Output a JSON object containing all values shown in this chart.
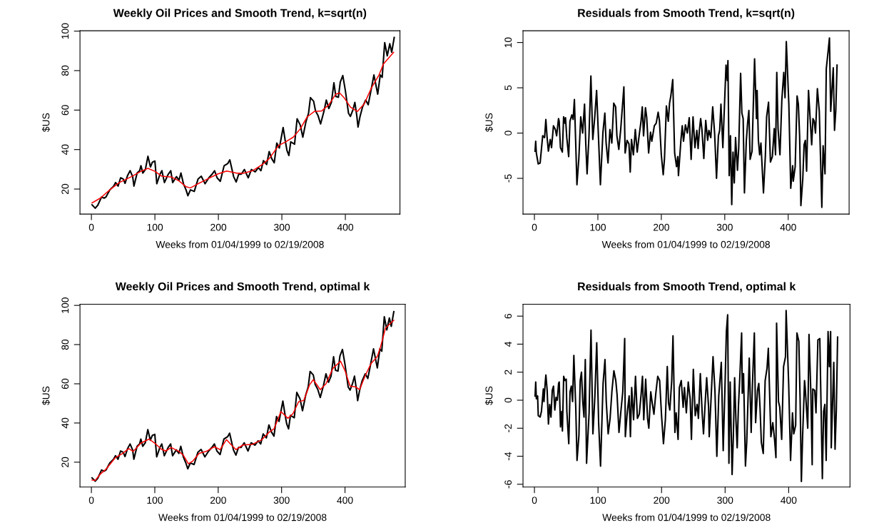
{
  "chart_data": [
    {
      "type": "line",
      "title": "Weekly Oil Prices and Smooth Trend, k=sqrt(n)",
      "xlabel": "Weeks from 01/04/1999 to 02/19/2008",
      "ylabel": "$US",
      "xlim": [
        -18,
        486
      ],
      "ylim": [
        7.3,
        100.2
      ],
      "xticks": [
        0,
        100,
        200,
        300,
        400
      ],
      "yticks": [
        20,
        40,
        60,
        80,
        100
      ],
      "series": [
        {
          "color": "#000000",
          "x": [
            1,
            6,
            10,
            16,
            20,
            23,
            29,
            35,
            38,
            42,
            46,
            50,
            53,
            57,
            61,
            65,
            67,
            72,
            76,
            78,
            81,
            85,
            89,
            93,
            96,
            100,
            103,
            108,
            111,
            115,
            121,
            125,
            128,
            134,
            138,
            141,
            145,
            149,
            152,
            156,
            162,
            168,
            173,
            179,
            185,
            190,
            194,
            198,
            203,
            209,
            215,
            218,
            224,
            228,
            232,
            236,
            241,
            247,
            252,
            258,
            263,
            267,
            271,
            276,
            280,
            284,
            288,
            292,
            296,
            302,
            305,
            308,
            311,
            314,
            320,
            324,
            329,
            333,
            338,
            342,
            345,
            350,
            353,
            357,
            361,
            366,
            370,
            374,
            378,
            382,
            385,
            389,
            392,
            396,
            400,
            405,
            408,
            412,
            415,
            418,
            420,
            423,
            427,
            432,
            436,
            440,
            445,
            451,
            455,
            458,
            462,
            466,
            470,
            473,
            477
          ],
          "values": [
            12.0,
            10.3,
            11.8,
            16.0,
            15.4,
            16.0,
            19.6,
            21.5,
            23.3,
            21.5,
            25.7,
            25.1,
            22.9,
            26.9,
            29.3,
            26.3,
            21.5,
            28.1,
            29.3,
            31.8,
            28.1,
            29.9,
            36.6,
            31.2,
            33.6,
            34.2,
            22.7,
            27.5,
            29.3,
            23.3,
            27.5,
            29.3,
            23.3,
            26.3,
            24.5,
            28.1,
            22.7,
            19.6,
            16.6,
            19.6,
            18.8,
            25.1,
            26.5,
            22.7,
            25.7,
            27.5,
            29.3,
            25.7,
            23.9,
            31.8,
            33.0,
            34.8,
            26.3,
            23.6,
            27.5,
            27.5,
            29.9,
            25.7,
            29.9,
            28.7,
            30.9,
            29.3,
            34.4,
            32.4,
            39.0,
            35.4,
            33.3,
            43.3,
            40.8,
            51.2,
            45.1,
            39.6,
            37.0,
            43.9,
            42.7,
            55.6,
            52.4,
            46.3,
            54.2,
            58.4,
            66.3,
            64.5,
            59.6,
            57.2,
            53.0,
            59.0,
            65.1,
            60.8,
            63.9,
            73.8,
            66.9,
            66.5,
            74.2,
            77.5,
            69.9,
            58.4,
            56.8,
            60.2,
            63.9,
            57.2,
            51.4,
            56.6,
            61.5,
            65.1,
            62.7,
            69.3,
            77.8,
            68.1,
            77.8,
            76.6,
            94.2,
            87.5,
            93.6,
            89.3,
            96.8
          ]
        },
        {
          "color": "#ff0000",
          "x": [
            1,
            14,
            29,
            44,
            63,
            78,
            89,
            100,
            111,
            126,
            138,
            149,
            156,
            168,
            183,
            198,
            213,
            228,
            239,
            254,
            269,
            280,
            295,
            306,
            318,
            329,
            340,
            351,
            363,
            374,
            385,
            391,
            398,
            408,
            419,
            430,
            441,
            453,
            460,
            476
          ],
          "values": [
            13.0,
            15.4,
            19.6,
            23.3,
            26.3,
            29.0,
            30.5,
            29.0,
            26.5,
            26.1,
            24.1,
            21.2,
            20.6,
            22.7,
            25.1,
            27.5,
            29.1,
            28.1,
            28.0,
            29.3,
            32.4,
            35.4,
            42.1,
            43.9,
            46.3,
            50.5,
            56.6,
            59.3,
            59.6,
            62.7,
            68.1,
            68.7,
            66.3,
            61.5,
            59.3,
            63.3,
            71.2,
            77.8,
            83.3,
            89.3
          ]
        }
      ]
    },
    {
      "type": "line",
      "title": "Residuals from Smooth Trend, k=sqrt(n)",
      "xlabel": "Weeks from 01/04/1999 to 02/19/2008",
      "ylabel": "$US",
      "xlim": [
        -18,
        496
      ],
      "ylim": [
        -8.95,
        11.3
      ],
      "xticks": [
        0,
        100,
        200,
        300,
        400
      ],
      "yticks": [
        -5,
        0,
        5,
        10
      ],
      "series": [
        {
          "color": "#000000",
          "x": [
            1,
            2,
            3,
            6,
            9,
            13,
            16,
            18,
            20,
            22,
            25,
            27,
            30,
            33,
            35,
            38,
            39,
            41,
            44,
            46,
            48,
            49,
            51,
            54,
            56,
            59,
            61,
            63,
            65,
            67,
            70,
            73,
            76,
            79,
            81,
            83,
            86,
            89,
            92,
            95,
            98,
            101,
            104,
            108,
            111,
            113,
            116,
            119,
            122,
            125,
            128,
            130,
            133,
            136,
            139,
            141,
            143,
            146,
            149,
            151,
            153,
            156,
            159,
            162,
            165,
            168,
            170,
            172,
            175,
            177,
            180,
            183,
            185,
            189,
            192,
            195,
            197,
            200,
            203,
            205,
            208,
            211,
            213,
            215,
            218,
            221,
            224,
            226,
            227,
            231,
            233,
            235,
            238,
            241,
            244,
            247,
            250,
            253,
            256,
            258,
            260,
            262,
            264,
            267,
            270,
            273,
            275,
            278,
            281,
            284,
            287,
            290,
            292,
            294,
            297,
            300,
            302,
            304,
            305,
            307,
            309,
            311,
            313,
            315,
            317,
            320,
            322,
            325,
            327,
            329,
            331,
            334,
            336,
            338,
            340,
            343,
            347,
            350,
            351,
            353,
            355,
            357,
            361,
            364,
            366,
            369,
            372,
            375,
            378,
            380,
            382,
            384,
            387,
            390,
            393,
            395,
            397,
            401,
            404,
            407,
            408,
            411,
            414,
            416,
            418,
            420,
            423,
            425,
            427,
            429,
            432,
            435,
            437,
            439,
            441,
            443,
            446,
            449,
            453,
            455,
            458,
            460,
            463,
            465,
            467,
            471,
            473,
            475,
            477
          ],
          "values": [
            -2.0,
            -0.9,
            -2.2,
            -3.4,
            -3.3,
            -0.3,
            -0.5,
            1.5,
            -0.5,
            -2.0,
            -0.7,
            -1.6,
            0.8,
            0.4,
            -0.3,
            1.6,
            1.3,
            -1.6,
            -2.1,
            1.8,
            1.1,
            1.7,
            -0.5,
            -2.6,
            1.3,
            2.0,
            1.5,
            3.7,
            -0.9,
            -5.7,
            -2.8,
            1.8,
            0.0,
            3.2,
            -1.3,
            -4.5,
            -0.3,
            6.3,
            -0.7,
            1.7,
            4.7,
            -0.5,
            -5.7,
            0.1,
            2.2,
            -1.1,
            -3.3,
            0.4,
            -1.1,
            3.3,
            2.9,
            -0.3,
            -1.8,
            0.4,
            3.2,
            5.1,
            -2.2,
            -0.8,
            -1.2,
            -4.3,
            -0.7,
            -2.4,
            0.4,
            -2.1,
            -0.3,
            1.3,
            2.9,
            -0.3,
            2.8,
            1.7,
            -2.2,
            0.1,
            -0.9,
            0.8,
            1.1,
            2.3,
            1.4,
            -2.4,
            -4.6,
            -2.8,
            3.0,
            1.3,
            3.3,
            4.1,
            5.9,
            -2.2,
            -3.7,
            -2.6,
            -4.7,
            -0.7,
            0.8,
            -0.9,
            0.9,
            0.0,
            1.7,
            -2.9,
            1.8,
            -1.6,
            0.3,
            -1.7,
            0.3,
            1.6,
            0.4,
            -2.8,
            1.4,
            -0.8,
            0.3,
            -0.5,
            2.9,
            0.0,
            -5.0,
            -0.3,
            0.3,
            3.2,
            -1.6,
            3.9,
            7.5,
            5.8,
            8.0,
            -4.7,
            -0.3,
            -7.9,
            -2.1,
            -5.5,
            -0.5,
            -4.1,
            -1.6,
            6.6,
            2.2,
            1.6,
            -6.6,
            -0.8,
            1.1,
            2.5,
            -2.9,
            -2.0,
            8.2,
            1.6,
            4.7,
            -0.8,
            -2.4,
            -1.1,
            -6.6,
            -2.5,
            1.8,
            3.4,
            -3.2,
            -2.6,
            0.5,
            -2.4,
            6.7,
            0.5,
            -2.4,
            3.7,
            6.7,
            3.9,
            10.1,
            3.2,
            -6.1,
            -3.6,
            -5.3,
            -3.7,
            4.1,
            3.2,
            -0.3,
            -8.0,
            -5.0,
            -1.3,
            -0.8,
            -4.2,
            4.7,
            1.1,
            -1.3,
            1.6,
            1.3,
            0.0,
            4.9,
            2.4,
            -8.2,
            -1.4,
            -4.5,
            7.1,
            9.1,
            10.5,
            2.4,
            7.2,
            0.3,
            2.5,
            7.5
          ]
        }
      ]
    },
    {
      "type": "line",
      "title": "Weekly Oil Prices and Smooth Trend, optimal k",
      "xlabel": "Weeks from 01/04/1999 to 02/19/2008",
      "ylabel": "$US",
      "xlim": [
        -18,
        495
      ],
      "ylim": [
        7.3,
        100.6
      ],
      "xticks": [
        0,
        100,
        200,
        300,
        400
      ],
      "yticks": [
        20,
        40,
        60,
        80,
        100
      ],
      "series": [
        {
          "color": "#000000",
          "x": [
            1,
            6,
            10,
            16,
            20,
            23,
            29,
            35,
            38,
            42,
            46,
            50,
            53,
            57,
            61,
            65,
            67,
            72,
            76,
            78,
            81,
            85,
            89,
            93,
            96,
            100,
            103,
            108,
            111,
            115,
            121,
            125,
            128,
            134,
            138,
            141,
            145,
            149,
            152,
            156,
            162,
            168,
            173,
            179,
            185,
            190,
            194,
            198,
            203,
            209,
            215,
            218,
            224,
            228,
            232,
            236,
            241,
            247,
            252,
            258,
            263,
            267,
            271,
            276,
            280,
            284,
            288,
            292,
            296,
            302,
            305,
            308,
            311,
            314,
            320,
            324,
            329,
            333,
            338,
            342,
            345,
            350,
            353,
            357,
            361,
            366,
            370,
            374,
            378,
            382,
            385,
            389,
            392,
            396,
            400,
            405,
            408,
            412,
            415,
            418,
            420,
            423,
            427,
            432,
            436,
            440,
            445,
            451,
            455,
            458,
            462,
            466,
            470,
            473,
            477
          ],
          "values": [
            12.0,
            10.3,
            11.8,
            16.0,
            15.4,
            16.0,
            19.6,
            21.5,
            23.3,
            21.5,
            25.7,
            25.1,
            22.9,
            26.9,
            29.3,
            26.3,
            21.5,
            28.1,
            29.3,
            31.8,
            28.1,
            29.9,
            36.6,
            31.2,
            33.6,
            34.2,
            22.7,
            27.5,
            29.3,
            23.3,
            27.5,
            29.3,
            23.3,
            26.3,
            24.5,
            28.1,
            22.7,
            19.6,
            16.6,
            19.6,
            18.8,
            25.1,
            26.5,
            22.7,
            25.7,
            27.5,
            29.3,
            25.7,
            23.9,
            31.8,
            33.0,
            34.8,
            26.3,
            23.6,
            27.5,
            27.5,
            29.9,
            25.7,
            29.9,
            28.7,
            30.9,
            29.3,
            34.4,
            32.4,
            39.0,
            35.4,
            33.3,
            43.3,
            40.8,
            51.2,
            45.1,
            39.6,
            37.0,
            43.9,
            42.7,
            55.6,
            52.4,
            46.3,
            54.2,
            58.4,
            66.3,
            64.5,
            59.6,
            57.2,
            53.0,
            59.0,
            65.1,
            60.8,
            63.9,
            73.8,
            66.9,
            66.5,
            74.2,
            77.5,
            69.9,
            58.4,
            56.8,
            60.2,
            63.9,
            57.2,
            51.4,
            56.6,
            61.5,
            65.1,
            62.7,
            69.3,
            77.8,
            68.1,
            77.8,
            76.6,
            94.2,
            87.5,
            93.6,
            89.3,
            96.8
          ]
        },
        {
          "color": "#ff0000",
          "x": [
            1,
            6,
            14,
            23,
            29,
            38,
            48,
            59,
            66,
            78,
            91,
            100,
            110,
            117,
            126,
            138,
            145,
            153,
            160,
            170,
            181,
            194,
            203,
            213,
            220,
            228,
            239,
            254,
            269,
            280,
            288,
            299,
            310,
            318,
            327,
            335,
            344,
            350,
            361,
            370,
            381,
            393,
            400,
            408,
            417,
            423,
            432,
            441,
            451,
            456,
            464,
            477
          ],
          "values": [
            10.9,
            10.7,
            13.9,
            16.4,
            18.8,
            22.4,
            24.2,
            26.9,
            25.5,
            29.7,
            31.8,
            29.7,
            26.7,
            25.7,
            27.5,
            25.5,
            23.6,
            19.2,
            20.6,
            24.5,
            25.5,
            27.9,
            26.4,
            31.5,
            29.1,
            26.4,
            28.8,
            29.1,
            31.5,
            35.2,
            37.0,
            45.8,
            42.4,
            44.8,
            50.9,
            51.5,
            59.4,
            62.1,
            57.0,
            60.0,
            67.9,
            71.5,
            66.7,
            58.8,
            58.4,
            57.0,
            64.2,
            70.3,
            73.9,
            78.8,
            88.5,
            92.4
          ]
        }
      ]
    },
    {
      "type": "line",
      "title": "Residuals from Smooth Trend, optimal k",
      "xlabel": "Weeks from 01/04/1999 to 02/19/2008",
      "ylabel": "$US",
      "xlim": [
        -18,
        496.5
      ],
      "ylim": [
        -6.2,
        6.85
      ],
      "xticks": [
        0,
        100,
        200,
        300,
        400
      ],
      "yticks": [
        -6,
        -4,
        -2,
        0,
        2,
        4,
        6
      ],
      "series": [
        {
          "color": "#000000",
          "x": [
            1,
            2,
            3,
            5,
            6,
            9,
            11,
            14,
            15,
            17,
            18,
            20,
            22,
            24,
            26,
            28,
            30,
            32,
            34,
            36,
            38,
            39,
            41,
            43,
            44,
            46,
            48,
            50,
            51,
            54,
            56,
            58,
            60,
            62,
            65,
            67,
            70,
            72,
            74,
            76,
            78,
            80,
            82,
            86,
            89,
            92,
            95,
            98,
            101,
            104,
            108,
            111,
            113,
            116,
            119,
            122,
            125,
            128,
            130,
            133,
            136,
            139,
            142,
            143,
            146,
            149,
            151,
            153,
            156,
            159,
            162,
            165,
            168,
            170,
            172,
            175,
            178,
            180,
            183,
            185,
            188,
            191,
            194,
            197,
            200,
            203,
            206,
            209,
            211,
            213,
            216,
            218,
            221,
            223,
            226,
            228,
            231,
            234,
            236,
            239,
            242,
            245,
            247,
            250,
            253,
            256,
            258,
            261,
            264,
            266,
            269,
            271,
            274,
            275,
            278,
            281,
            284,
            287,
            290,
            294,
            297,
            300,
            302,
            304,
            306,
            308,
            311,
            313,
            315,
            317,
            319,
            321,
            323,
            326,
            327,
            329,
            332,
            334,
            336,
            338,
            341,
            343,
            346,
            348,
            351,
            353,
            355,
            357,
            360,
            363,
            366,
            368,
            372,
            375,
            378,
            380,
            381,
            384,
            386,
            389,
            392,
            395,
            396,
            400,
            403,
            406,
            408,
            411,
            413,
            416,
            418,
            420,
            422,
            425,
            426,
            430,
            432,
            435,
            437,
            438,
            441,
            443,
            446,
            449,
            451,
            453,
            455,
            457,
            459,
            462,
            464,
            466,
            467,
            471,
            473,
            475,
            477
          ],
          "values": [
            0.3,
            1.3,
            0.1,
            0.3,
            -1.1,
            -1.2,
            -0.8,
            0.8,
            -0.1,
            1.3,
            1.8,
            0.7,
            -1.7,
            -0.3,
            -1.2,
            0.7,
            1.0,
            -0.7,
            0.2,
            0.0,
            1.2,
            1.3,
            -1.9,
            -0.8,
            -2.2,
            1.7,
            1.4,
            1.5,
            -0.8,
            -3.1,
            0.6,
            1.0,
            -0.1,
            3.2,
            -0.5,
            -4.3,
            -2.5,
            1.4,
            2.0,
            -0.1,
            -1.2,
            2.9,
            -4.5,
            -0.9,
            5.0,
            -2.4,
            0.2,
            4.1,
            -1.6,
            -4.7,
            1.2,
            2.9,
            -0.1,
            -2.4,
            -1.3,
            0.7,
            2.1,
            1.4,
            0.4,
            -2.3,
            -0.8,
            0.6,
            4.4,
            -2.6,
            -0.9,
            0.3,
            -2.6,
            0.9,
            -1.4,
            1.7,
            -1.3,
            -1.0,
            0.5,
            1.7,
            -1.4,
            1.5,
            -1.3,
            -2.0,
            0.6,
            -0.1,
            -1.0,
            0.5,
            1.7,
            1.4,
            -1.1,
            -3.1,
            -1.4,
            2.4,
            -0.2,
            -0.7,
            1.4,
            4.6,
            -2.3,
            -0.9,
            -2.8,
            0.9,
            1.4,
            -0.5,
            0.9,
            -0.9,
            1.3,
            0.1,
            -2.8,
            2.2,
            -1.1,
            -0.3,
            -1.3,
            1.9,
            -1.0,
            -2.4,
            0.1,
            1.6,
            -0.5,
            -2.6,
            0.2,
            3.1,
            0.7,
            -4.0,
            0.3,
            2.7,
            -3.6,
            1.3,
            4.9,
            6.1,
            -4.5,
            1.3,
            -5.3,
            -2.5,
            1.6,
            -1.4,
            -3.4,
            -0.4,
            1.5,
            4.8,
            0.5,
            1.9,
            -4.7,
            -3.0,
            0.0,
            3.0,
            -2.3,
            1.1,
            4.8,
            -1.6,
            0.7,
            1.2,
            -0.6,
            -3.0,
            -3.8,
            1.4,
            2.3,
            3.7,
            -2.6,
            -1.6,
            -2.9,
            -4.1,
            5.5,
            -0.1,
            -0.5,
            -2.8,
            2.4,
            3.1,
            6.4,
            1.2,
            -4.3,
            -0.9,
            -2.4,
            -1.8,
            4.8,
            4.2,
            0.1,
            -5.8,
            -2.5,
            1.4,
            0.9,
            -2.0,
            4.7,
            0.4,
            -4.6,
            0.8,
            0.7,
            -0.9,
            4.3,
            4.4,
            -0.5,
            -5.6,
            -0.8,
            -0.3,
            -4.3,
            4.9,
            2.4,
            4.9,
            -3.4,
            2.7,
            -3.5,
            -0.7,
            4.5
          ]
        }
      ]
    }
  ]
}
